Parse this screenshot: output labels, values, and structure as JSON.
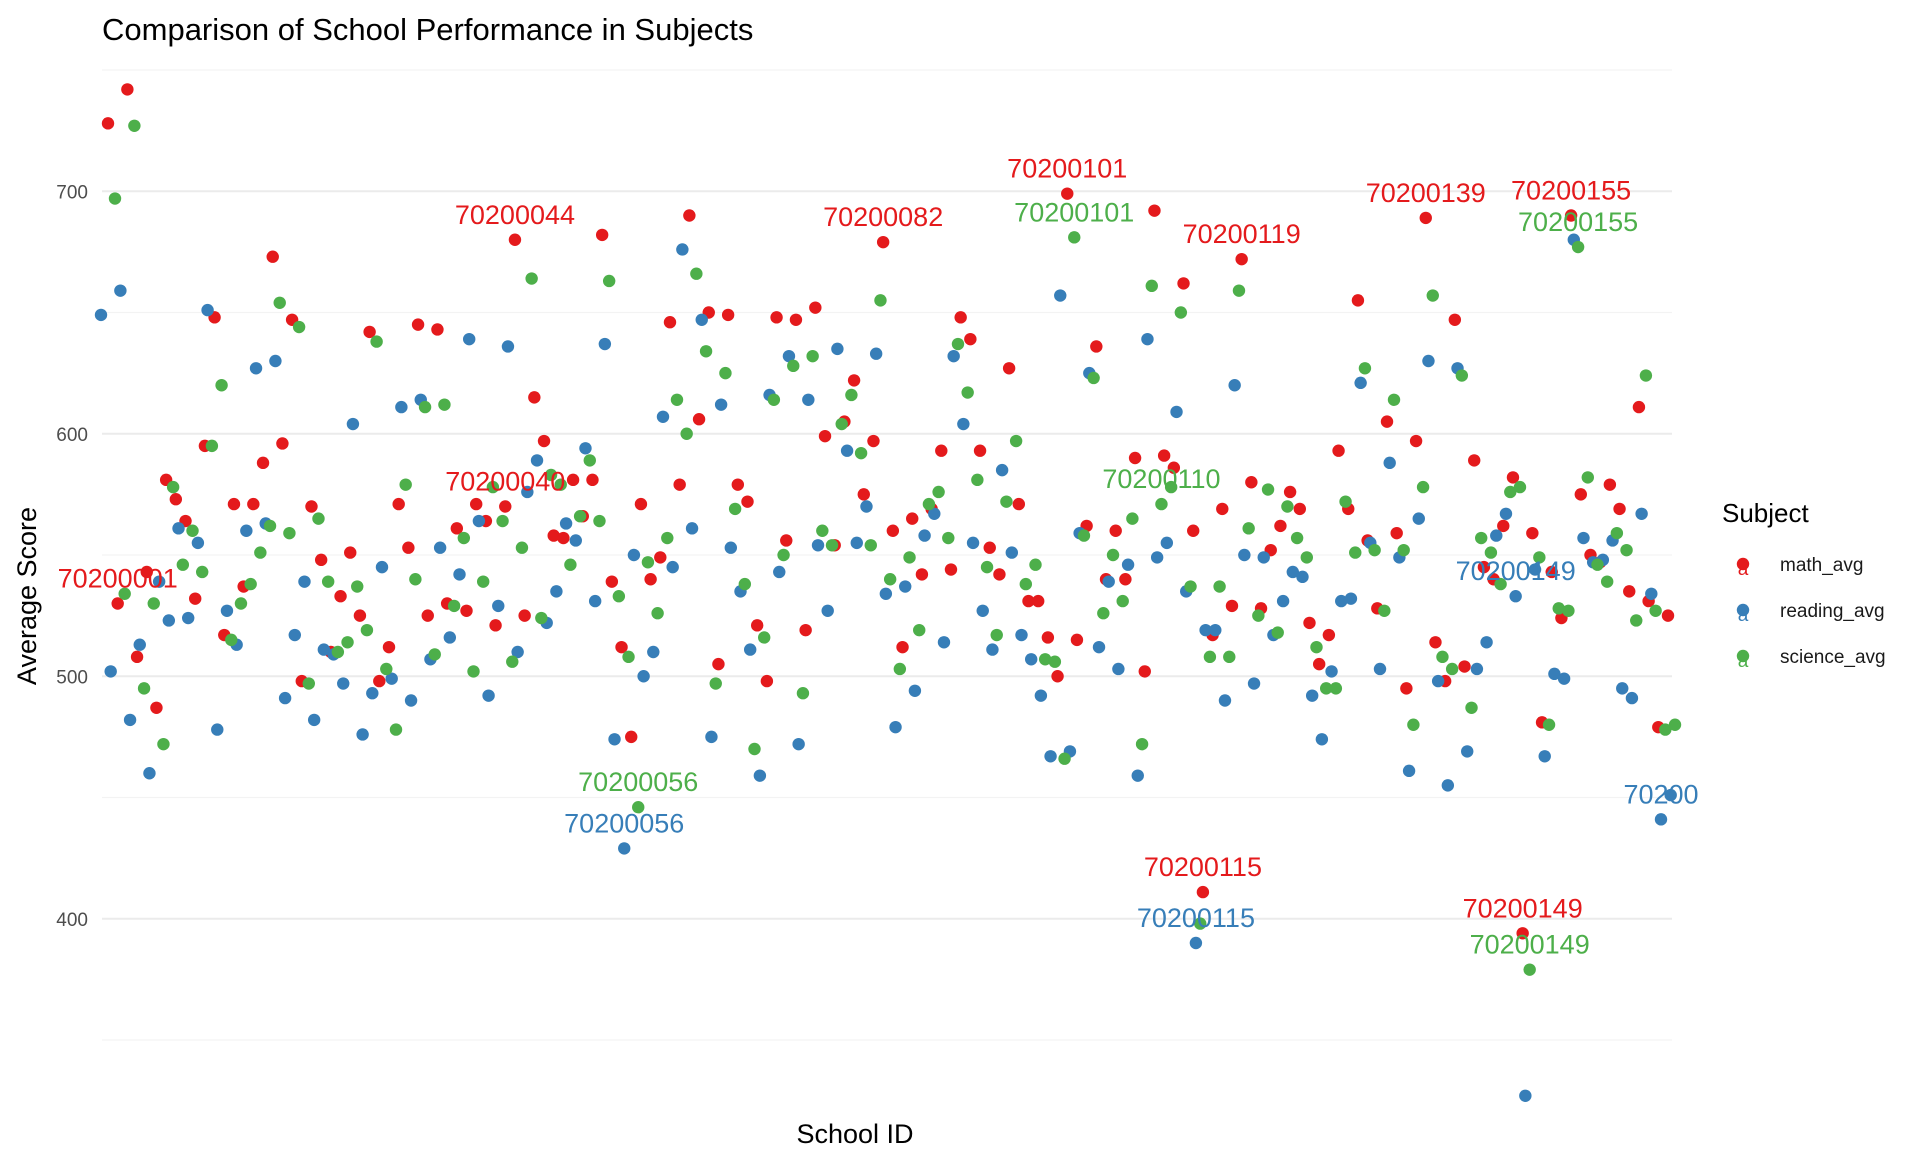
{
  "chart_data": {
    "type": "scatter",
    "title": "Comparison of School Performance in Subjects",
    "xlabel": "School ID",
    "ylabel": "Average Score",
    "ylim": [
      350,
      750
    ],
    "y_ticks": [
      400,
      500,
      600,
      700
    ],
    "x_tick_labels_shown": false,
    "grid": true,
    "legend": {
      "title": "Subject",
      "position": "right"
    },
    "colors": {
      "math_avg": "#e41a1c",
      "reading_avg": "#377eb8",
      "science_avg": "#4daf4a"
    },
    "series": [
      {
        "name": "math_avg",
        "values": [
          728,
          530,
          742,
          508,
          543,
          487,
          581,
          573,
          564,
          532,
          595,
          648,
          517,
          571,
          537,
          571,
          588,
          673,
          596,
          647,
          498,
          570,
          548,
          510,
          533,
          551,
          525,
          642,
          498,
          512,
          571,
          553,
          645,
          525,
          643,
          530,
          561,
          527,
          571,
          564,
          521,
          570,
          680,
          525,
          615,
          597,
          558,
          557,
          581,
          566,
          581,
          682,
          539,
          512,
          475,
          571,
          540,
          549,
          646,
          579,
          690,
          606,
          650,
          505,
          649,
          579,
          572,
          521,
          498,
          648,
          556,
          647,
          519,
          652,
          599,
          554,
          605,
          622,
          575,
          597,
          679,
          560,
          512,
          565,
          542,
          569,
          593,
          544,
          648,
          639,
          593,
          553,
          542,
          627,
          571,
          531,
          531,
          516,
          500,
          699,
          515,
          562,
          636,
          540,
          560,
          540,
          590,
          502,
          692,
          591,
          586,
          662,
          560,
          411,
          517,
          569,
          529,
          672,
          580,
          528,
          552,
          562,
          576,
          569,
          522,
          505,
          517,
          593,
          569,
          655,
          556,
          528,
          605,
          559,
          495,
          597,
          689,
          514,
          498,
          647,
          504,
          589,
          545,
          540,
          562,
          582,
          394,
          559,
          481,
          543,
          524,
          690,
          575,
          550,
          547,
          579,
          569,
          535,
          611,
          531,
          479,
          525
        ],
        "labels": [
          {
            "text": "70200001",
            "index": 1
          },
          {
            "text": "70200040",
            "index": 41
          },
          {
            "text": "70200044",
            "index": 42
          },
          {
            "text": "70200082",
            "index": 80
          },
          {
            "text": "70200101",
            "index": 99
          },
          {
            "text": "70200115",
            "index": 113
          },
          {
            "text": "70200119",
            "index": 117
          },
          {
            "text": "70200139",
            "index": 136
          },
          {
            "text": "70200149",
            "index": 146
          },
          {
            "text": "70200155",
            "index": 151
          }
        ]
      },
      {
        "name": "reading_avg",
        "values": [
          649,
          502,
          659,
          482,
          513,
          460,
          539,
          523,
          561,
          524,
          555,
          651,
          478,
          527,
          513,
          560,
          627,
          563,
          630,
          491,
          517,
          539,
          482,
          511,
          509,
          497,
          604,
          476,
          493,
          545,
          499,
          611,
          490,
          614,
          507,
          553,
          516,
          542,
          639,
          564,
          492,
          529,
          636,
          510,
          576,
          589,
          522,
          535,
          563,
          556,
          594,
          531,
          637,
          474,
          429,
          550,
          500,
          510,
          607,
          545,
          676,
          561,
          647,
          475,
          612,
          553,
          535,
          511,
          459,
          616,
          543,
          632,
          472,
          614,
          554,
          527,
          635,
          593,
          555,
          570,
          633,
          534,
          479,
          537,
          494,
          558,
          567,
          514,
          632,
          604,
          555,
          527,
          511,
          585,
          551,
          517,
          507,
          492,
          467,
          657,
          469,
          559,
          625,
          512,
          539,
          503,
          546,
          459,
          639,
          549,
          555,
          609,
          535,
          390,
          519,
          519,
          490,
          620,
          550,
          497,
          549,
          517,
          531,
          543,
          541,
          492,
          474,
          502,
          531,
          532,
          621,
          555,
          503,
          588,
          549,
          461,
          565,
          630,
          498,
          455,
          627,
          469,
          503,
          514,
          558,
          567,
          533,
          327,
          544,
          467,
          501,
          499,
          680,
          557,
          547,
          548,
          556,
          495,
          491,
          567,
          534,
          441,
          451
        ],
        "labels": [
          {
            "text": "70200056",
            "index": 54
          },
          {
            "text": "70200115",
            "index": 113
          },
          {
            "text": "70200149",
            "index": 146
          },
          {
            "text": "70200",
            "index": 161
          }
        ]
      },
      {
        "name": "science_avg",
        "values": [
          697,
          534,
          727,
          495,
          530,
          472,
          578,
          546,
          560,
          543,
          595,
          620,
          515,
          530,
          538,
          551,
          562,
          654,
          559,
          644,
          497,
          565,
          539,
          510,
          514,
          537,
          519,
          638,
          503,
          478,
          579,
          540,
          611,
          509,
          612,
          529,
          557,
          502,
          539,
          578,
          564,
          506,
          553,
          664,
          524,
          583,
          579,
          546,
          566,
          589,
          564,
          663,
          533,
          508,
          446,
          547,
          526,
          557,
          614,
          600,
          666,
          634,
          497,
          625,
          569,
          538,
          470,
          516,
          614,
          550,
          628,
          493,
          632,
          560,
          554,
          604,
          616,
          592,
          554,
          655,
          540,
          503,
          549,
          519,
          571,
          576,
          557,
          637,
          617,
          581,
          545,
          517,
          572,
          597,
          538,
          546,
          507,
          506,
          466,
          681,
          558,
          623,
          526,
          550,
          531,
          565,
          472,
          661,
          571,
          578,
          650,
          537,
          398,
          508,
          537,
          508,
          659,
          561,
          525,
          577,
          518,
          570,
          557,
          549,
          512,
          495,
          495,
          572,
          551,
          627,
          552,
          527,
          614,
          552,
          480,
          578,
          657,
          508,
          503,
          624,
          487,
          557,
          551,
          538,
          576,
          578,
          379,
          549,
          480,
          528,
          527,
          677,
          582,
          546,
          539,
          559,
          552,
          523,
          624,
          527,
          478,
          480
        ],
        "labels": [
          {
            "text": "70200056",
            "index": 54
          },
          {
            "text": "70200101",
            "index": 99
          },
          {
            "text": "70200110",
            "index": 108
          },
          {
            "text": "70200149",
            "index": 146
          },
          {
            "text": "70200155",
            "index": 151
          }
        ]
      }
    ],
    "legend_key_glyph": "a"
  }
}
